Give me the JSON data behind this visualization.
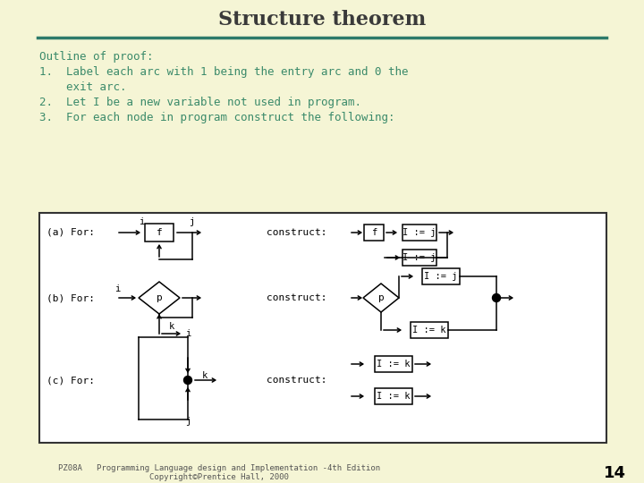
{
  "background_color": "#f5f5d5",
  "title": "Structure theorem",
  "title_color": "#3a3a3a",
  "title_fontsize": 16,
  "separator_color": "#2d7a6a",
  "text_color": "#3a8a6a",
  "text_fontsize": 9.0,
  "lines": [
    "Outline of proof:",
    "1.  Label each arc with 1 being the entry arc and 0 the",
    "    exit arc.",
    "2.  Let I be a new variable not used in program.",
    "3.  For each node in program construct the following:"
  ],
  "page_number": "14",
  "footer_text1": "PZ08A   Programming Language design and Implementation -4th Edition",
  "footer_text2": "Copyright©Prentice Hall, 2000"
}
